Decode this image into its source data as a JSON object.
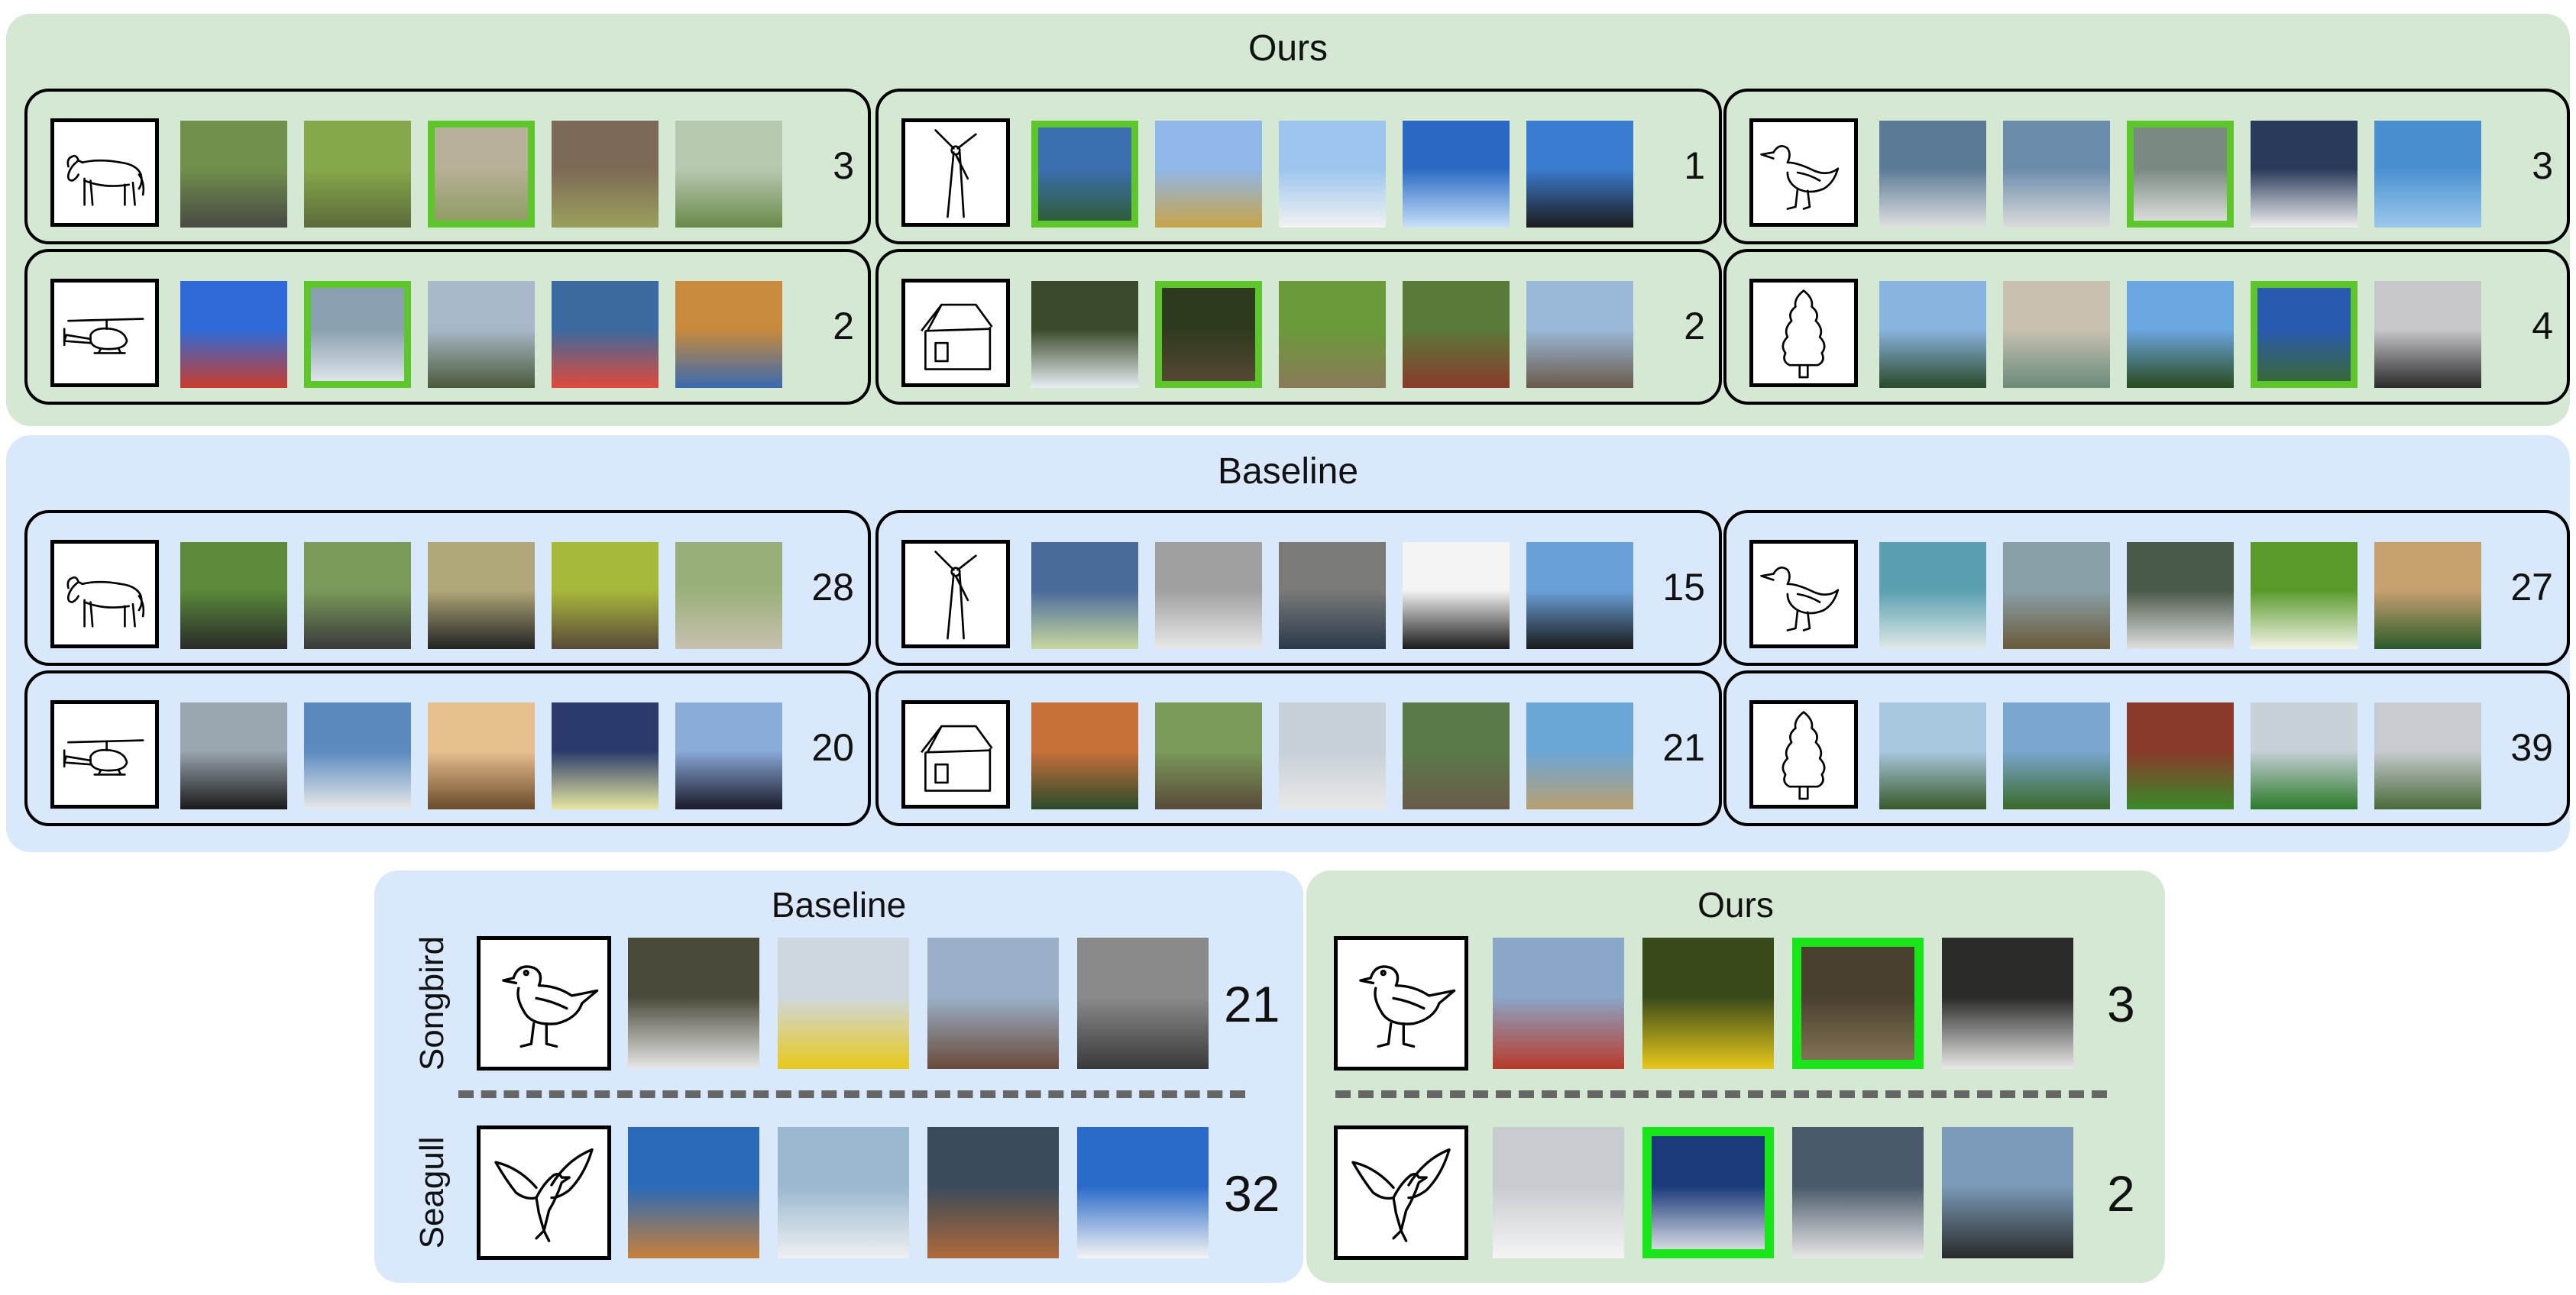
{
  "top": {
    "title": "Ours",
    "colors": {
      "panel": "#d5e8d4",
      "highlight": "#5cc62a"
    },
    "rows": [
      {
        "sketch": "cow-sketch-icon",
        "rank": "3",
        "highlight": 2,
        "thumbs": [
          [
            "#6f8f4a",
            "#4a4a46"
          ],
          [
            "#86a84a",
            "#5d6b3c"
          ],
          [
            "#b8b098",
            "#8a9a5c"
          ],
          [
            "#7d6a56",
            "#9aa05c"
          ],
          [
            "#b7c8b0",
            "#6b8a4a"
          ]
        ]
      },
      {
        "sketch": "wind-turbine-sketch-icon",
        "rank": "1",
        "highlight": 0,
        "thumbs": [
          [
            "#3c6fb0",
            "#2e5a2a"
          ],
          [
            "#8fb8e8",
            "#c9a44a"
          ],
          [
            "#9cc6ee",
            "#f2f2f2"
          ],
          [
            "#2a6ac4",
            "#c8e0f8"
          ],
          [
            "#3a7cd0",
            "#1c1c1c"
          ]
        ]
      },
      {
        "sketch": "seagull-sketch-icon",
        "rank": "3",
        "highlight": 2,
        "thumbs": [
          [
            "#5a7a96",
            "#e0e0e0"
          ],
          [
            "#6c8cac",
            "#dcdcdc"
          ],
          [
            "#7a8a80",
            "#e8e8e8"
          ],
          [
            "#2a3a5a",
            "#f0f0f0"
          ],
          [
            "#4a90d0",
            "#9cc8ec"
          ]
        ]
      },
      {
        "sketch": "helicopter-sketch-icon",
        "rank": "2",
        "highlight": 1,
        "thumbs": [
          [
            "#2e6ad8",
            "#c83c2c"
          ],
          [
            "#8aa0b0",
            "#e8ecf0"
          ],
          [
            "#a8b8c8",
            "#4a5a3a"
          ],
          [
            "#3a6aa0",
            "#e04a3a"
          ],
          [
            "#c88a3c",
            "#3a6ab0"
          ]
        ]
      },
      {
        "sketch": "house-sketch-icon",
        "rank": "2",
        "highlight": 1,
        "thumbs": [
          [
            "#3a4a2a",
            "#e8eef4"
          ],
          [
            "#2e3a1e",
            "#5a4a36"
          ],
          [
            "#6a9a3a",
            "#8a7a5a"
          ],
          [
            "#5a7a3a",
            "#8a3a2a"
          ],
          [
            "#9ab8d8",
            "#6a5a4a"
          ]
        ]
      },
      {
        "sketch": "pine-tree-sketch-icon",
        "rank": "4",
        "highlight": 3,
        "thumbs": [
          [
            "#8ab4e0",
            "#2a4a2a"
          ],
          [
            "#c8c0b0",
            "#6a8a7a"
          ],
          [
            "#6aa6e0",
            "#2a4a1e"
          ],
          [
            "#2a5ab0",
            "#3a6a2a"
          ],
          [
            "#c8c8cc",
            "#2a2a2a"
          ]
        ]
      }
    ]
  },
  "mid": {
    "title": "Baseline",
    "colors": {
      "panel": "#dae8fc"
    },
    "rows": [
      {
        "sketch": "cow-sketch-icon",
        "rank": "28",
        "highlight": -1,
        "thumbs": [
          [
            "#5a8a3a",
            "#2a2a2a"
          ],
          [
            "#7a9a5a",
            "#3a3a3a"
          ],
          [
            "#b0a878",
            "#222222"
          ],
          [
            "#a8b83a",
            "#5a4a3a"
          ],
          [
            "#9ab07a",
            "#c8c0b0"
          ]
        ]
      },
      {
        "sketch": "wind-turbine-sketch-icon",
        "rank": "15",
        "highlight": -1,
        "thumbs": [
          [
            "#4a6a9a",
            "#c8d8a0"
          ],
          [
            "#a0a0a0",
            "#e8e8e8"
          ],
          [
            "#7a7a78",
            "#2a3a4a"
          ],
          [
            "#f4f4f4",
            "#1a1a1a"
          ],
          [
            "#6aa0d8",
            "#1a1a1a"
          ]
        ]
      },
      {
        "sketch": "seagull-sketch-icon",
        "rank": "27",
        "highlight": -1,
        "thumbs": [
          [
            "#5aa0b0",
            "#e0e8e8"
          ],
          [
            "#8aa0a8",
            "#6a5a3a"
          ],
          [
            "#4a5a4a",
            "#e0e0e0"
          ],
          [
            "#5a9a2a",
            "#f4f4e8"
          ],
          [
            "#c8a070",
            "#2a5a2a"
          ]
        ]
      },
      {
        "sketch": "helicopter-sketch-icon",
        "rank": "20",
        "highlight": -1,
        "thumbs": [
          [
            "#9aa6b0",
            "#1a1a1a"
          ],
          [
            "#5a8ac0",
            "#e8e8e8"
          ],
          [
            "#e8c090",
            "#6a4a2a"
          ],
          [
            "#2a3a6a",
            "#e8e8a0"
          ],
          [
            "#8aaad8",
            "#1a1a2a"
          ]
        ]
      },
      {
        "sketch": "house-sketch-icon",
        "rank": "21",
        "highlight": -1,
        "thumbs": [
          [
            "#c8703a",
            "#2a4a2a"
          ],
          [
            "#7a9a5a",
            "#5a4a3a"
          ],
          [
            "#c8d0d8",
            "#e8e8e8"
          ],
          [
            "#5a7a4a",
            "#6a5a4a"
          ],
          [
            "#6aa6d8",
            "#b8a070"
          ]
        ]
      },
      {
        "sketch": "pine-tree-sketch-icon",
        "rank": "39",
        "highlight": -1,
        "thumbs": [
          [
            "#a8c8e0",
            "#3a5a2a"
          ],
          [
            "#7aa6d0",
            "#3a6a2a"
          ],
          [
            "#8a3a2a",
            "#3a8a2a"
          ],
          [
            "#c8d0d8",
            "#2a7a2a"
          ],
          [
            "#c8ccd0",
            "#4a6a3a"
          ]
        ]
      }
    ]
  },
  "bottom_left": {
    "title": "Baseline",
    "rows": [
      {
        "label": "Songbird",
        "sketch": "songbird-sketch-icon",
        "rank": "21",
        "thumbs": [
          [
            "#4a4a3a",
            "#e8e8e8"
          ],
          [
            "#cfd8e0",
            "#e8c81a"
          ],
          [
            "#9ab0c8",
            "#6a4a3a"
          ],
          [
            "#8a8a8a",
            "#3a3a3a"
          ]
        ]
      },
      {
        "label": "Seagull",
        "sketch": "seagull-flying-sketch-icon",
        "rank": "32",
        "thumbs": [
          [
            "#2a6ab8",
            "#c8803a"
          ],
          [
            "#9ab8d0",
            "#f0f0f0"
          ],
          [
            "#3a4a5a",
            "#b06a3a"
          ],
          [
            "#2a6ac8",
            "#f4f4f4"
          ]
        ]
      }
    ]
  },
  "bottom_right": {
    "title": "Ours",
    "highlight_color": "#19e619",
    "rows": [
      {
        "sketch": "songbird-sketch-icon",
        "rank": "3",
        "highlight": 2,
        "thumbs": [
          [
            "#8aa6c8",
            "#b83a2a"
          ],
          [
            "#3a4a1a",
            "#e8c81a"
          ],
          [
            "#4a4030",
            "#8a7a5a"
          ],
          [
            "#2a2a28",
            "#e8e8e8"
          ]
        ]
      },
      {
        "sketch": "seagull-flying-sketch-icon",
        "rank": "2",
        "highlight": 1,
        "thumbs": [
          [
            "#c8ccd0",
            "#f4f4f4"
          ],
          [
            "#1a3a7a",
            "#f0f0f0"
          ],
          [
            "#4a5a6a",
            "#e8e8e8"
          ],
          [
            "#7a9ab8",
            "#2a2a2a"
          ]
        ]
      }
    ]
  }
}
